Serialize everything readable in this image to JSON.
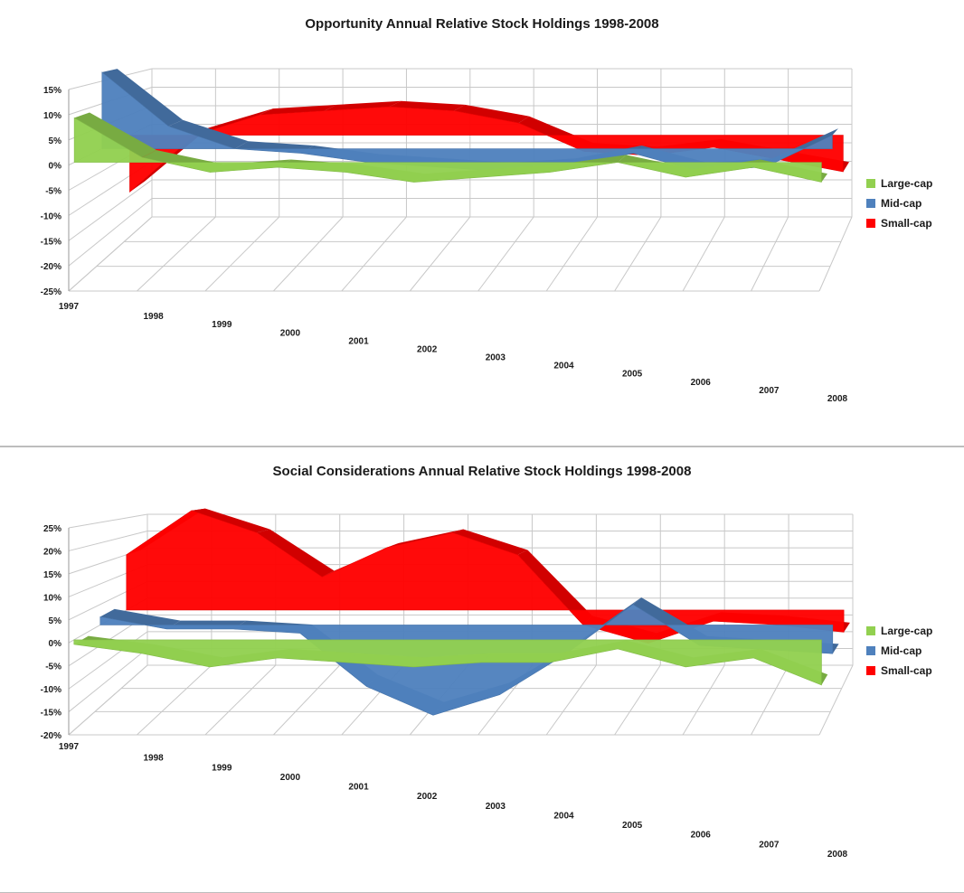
{
  "chart_data": [
    {
      "type": "area",
      "title": "Opportunity Annual Relative Stock Holdings 1998-2008",
      "categories": [
        "1997",
        "1998",
        "1999",
        "2000",
        "2001",
        "2002",
        "2003",
        "2004",
        "2005",
        "2006",
        "2007",
        "2008"
      ],
      "ylim": [
        -25,
        15
      ],
      "yticks": [
        15,
        10,
        5,
        0,
        -5,
        -10,
        -15,
        -20,
        -25
      ],
      "ytick_labels": [
        "15%",
        "10%",
        "5%",
        "0%",
        "-5%",
        "-10%",
        "-15%",
        "-20%",
        "-25%"
      ],
      "grid": true,
      "legend": "right",
      "series": [
        {
          "name": "Large-cap",
          "color": "#92d050",
          "values": [
            9,
            1,
            -2,
            -1,
            -2,
            -4,
            -3,
            -2,
            0,
            -3,
            -1,
            -4
          ]
        },
        {
          "name": "Mid-cap",
          "color": "#4f81bd",
          "values": [
            17,
            5,
            0,
            -1,
            -3,
            -4,
            -5,
            -4,
            -1,
            -5,
            -4,
            3
          ]
        },
        {
          "name": "Small-cap",
          "color": "#ff0000",
          "values": [
            -14,
            0,
            5,
            6,
            7,
            6,
            3,
            -4,
            -5,
            -3,
            -6,
            -9
          ]
        }
      ]
    },
    {
      "type": "area",
      "title": "Social Considerations Annual Relative Stock Holdings 1998-2008",
      "categories": [
        "1997",
        "1998",
        "1999",
        "2000",
        "2001",
        "2002",
        "2003",
        "2004",
        "2005",
        "2006",
        "2007",
        "2008"
      ],
      "ylim": [
        -20,
        25
      ],
      "yticks": [
        25,
        20,
        15,
        10,
        5,
        0,
        -5,
        -10,
        -15,
        -20
      ],
      "ytick_labels": [
        "25%",
        "20%",
        "15%",
        "10%",
        "5%",
        "0%",
        "-5%",
        "-10%",
        "-15%",
        "-20%"
      ],
      "grid": true,
      "legend": "right",
      "series": [
        {
          "name": "Large-cap",
          "color": "#92d050",
          "values": [
            -1,
            -3,
            -6,
            -4,
            -5,
            -6,
            -5,
            -5,
            -2,
            -6,
            -4,
            -10
          ]
        },
        {
          "name": "Mid-cap",
          "color": "#4f81bd",
          "values": [
            2,
            -1,
            -1,
            -2,
            -15,
            -22,
            -17,
            -7,
            5,
            -5,
            -6,
            -7
          ]
        },
        {
          "name": "Small-cap",
          "color": "#ff0000",
          "values": [
            15,
            27,
            21,
            9,
            17,
            21,
            15,
            -4,
            -9,
            -3,
            -4,
            -6
          ]
        }
      ]
    }
  ]
}
